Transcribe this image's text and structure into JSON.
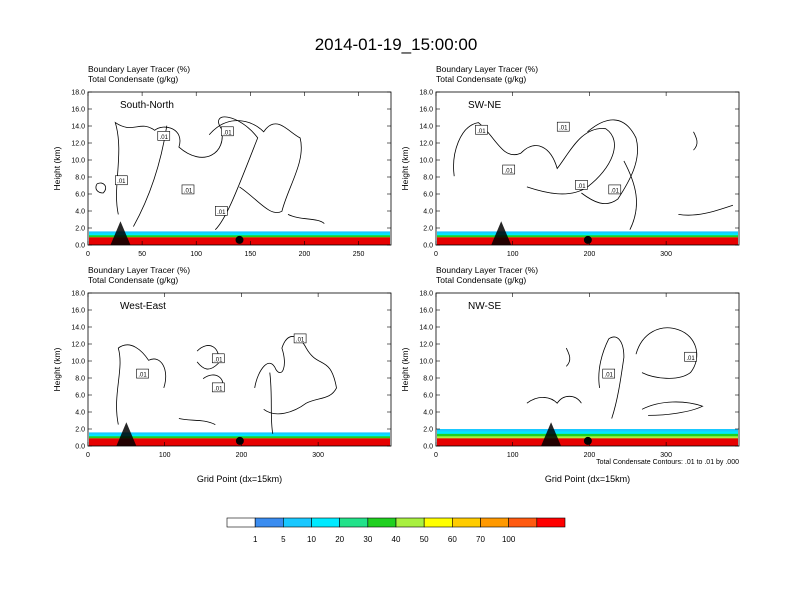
{
  "figure": {
    "title": "2014-01-19_15:00:00",
    "footnote": "Total Condensate Contours: .01 to .01 by .000"
  },
  "colorbar": {
    "labels": [
      "1",
      "5",
      "10",
      "20",
      "30",
      "40",
      "50",
      "60",
      "70",
      "100"
    ],
    "colors": [
      "#ffffff",
      "#3a8cf0",
      "#19c8ff",
      "#00eaff",
      "#22e28a",
      "#20d020",
      "#a8f040",
      "#ffff00",
      "#ffcc00",
      "#ff9900",
      "#ff5a10",
      "#ff0000"
    ]
  },
  "chart_data": [
    {
      "type": "heatmap",
      "subtitle_line1": "Boundary Layer Tracer   (%)",
      "subtitle_line2": "Total Condensate   (g/kg)",
      "panel_label": "South-North",
      "ylabel": "Height (km)",
      "xlabel": "",
      "xlim": [
        0,
        280
      ],
      "ylim": [
        0,
        18
      ],
      "xticks": [
        "0",
        "50",
        "100",
        "150",
        "200",
        "250"
      ],
      "xtick_values": [
        0,
        50,
        100,
        150,
        200,
        250
      ],
      "yticks": [
        "0.0",
        "2.0",
        "4.0",
        "6.0",
        "8.0",
        "10.0",
        "12.0",
        "14.0",
        "16.0",
        "18.0"
      ],
      "marker_x": 140,
      "terrain_x": 30,
      "contour_labels": [
        ".01",
        ".01",
        ".01",
        ".01",
        ".01"
      ]
    },
    {
      "type": "heatmap",
      "subtitle_line1": "Boundary Layer Tracer   (%)",
      "subtitle_line2": "Total Condensate   (g/kg)",
      "panel_label": "SW-NE",
      "ylabel": "Height (km)",
      "xlabel": "",
      "xlim": [
        0,
        395
      ],
      "ylim": [
        0,
        18
      ],
      "xticks": [
        "0",
        "100",
        "200",
        "300"
      ],
      "xtick_values": [
        0,
        100,
        200,
        300
      ],
      "yticks": [
        "0.0",
        "2.0",
        "4.0",
        "6.0",
        "8.0",
        "10.0",
        "12.0",
        "14.0",
        "16.0",
        "18.0"
      ],
      "marker_x": 198,
      "terrain_x": 85,
      "contour_labels": [
        ".01",
        ".01",
        ".01",
        ".01",
        ".01"
      ]
    },
    {
      "type": "heatmap",
      "subtitle_line1": "Boundary Layer Tracer   (%)",
      "subtitle_line2": "Total Condensate   (g/kg)",
      "panel_label": "West-East",
      "ylabel": "Height (km)",
      "xlabel": "Grid Point (dx=15km)",
      "xlim": [
        0,
        395
      ],
      "ylim": [
        0,
        18
      ],
      "xticks": [
        "0",
        "100",
        "200",
        "300"
      ],
      "xtick_values": [
        0,
        100,
        200,
        300
      ],
      "yticks": [
        "0.0",
        "2.0",
        "4.0",
        "6.0",
        "8.0",
        "10.0",
        "12.0",
        "14.0",
        "16.0",
        "18.0"
      ],
      "marker_x": 198,
      "terrain_x": 50,
      "contour_labels": [
        ".01",
        ".01",
        ".01",
        ".01"
      ]
    },
    {
      "type": "heatmap",
      "subtitle_line1": "Boundary Layer Tracer   (%)",
      "subtitle_line2": "Total Condensate   (g/kg)",
      "panel_label": "NW-SE",
      "ylabel": "Height (km)",
      "xlabel": "Grid Point (dx=15km)",
      "xlim": [
        0,
        395
      ],
      "ylim": [
        0,
        18
      ],
      "xticks": [
        "0",
        "100",
        "200",
        "300"
      ],
      "xtick_values": [
        0,
        100,
        200,
        300
      ],
      "yticks": [
        "0.0",
        "2.0",
        "4.0",
        "6.0",
        "8.0",
        "10.0",
        "12.0",
        "14.0",
        "16.0",
        "18.0"
      ],
      "marker_x": 198,
      "terrain_x": 150,
      "contour_labels": [
        ".01",
        ".01"
      ]
    }
  ]
}
